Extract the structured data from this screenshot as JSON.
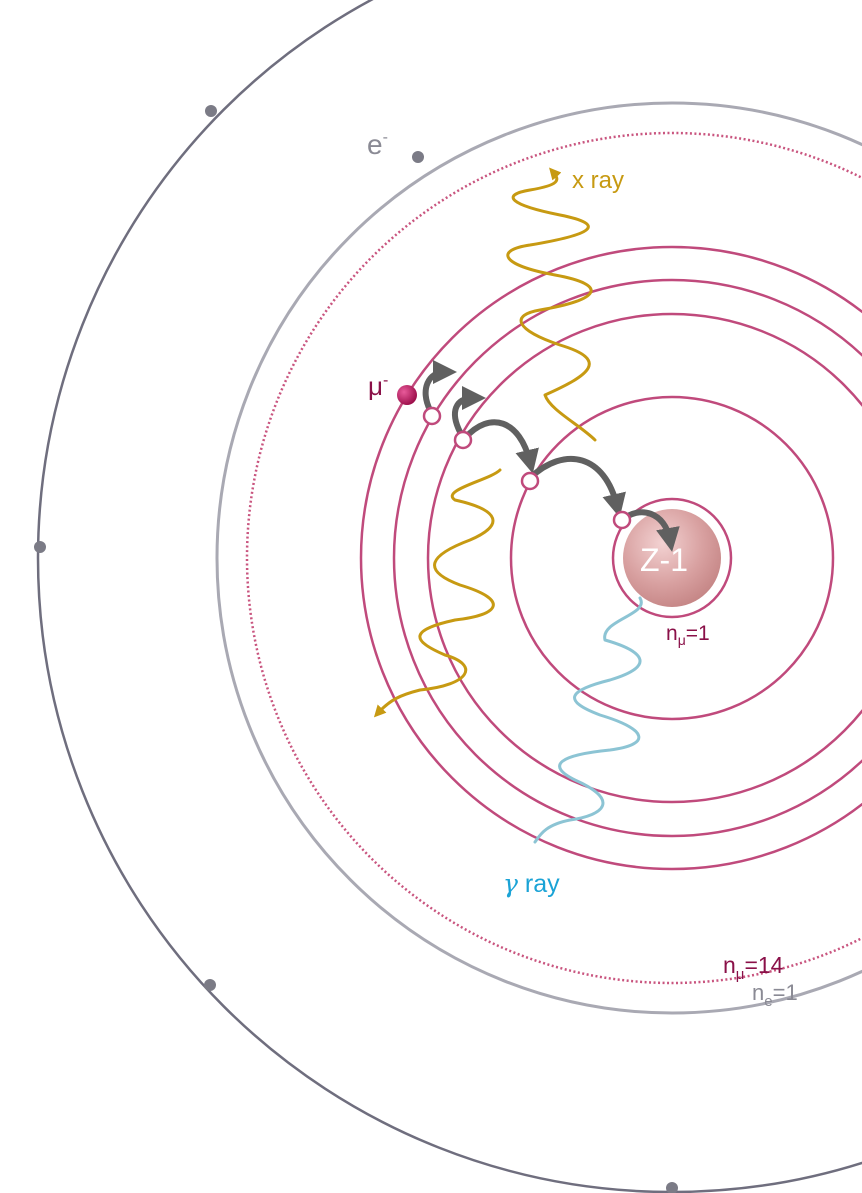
{
  "labels": {
    "electron": "e",
    "electron_sup": "-",
    "muon": "μ",
    "muon_sup": "-",
    "nucleus": "Z-1",
    "xray": "x ray",
    "gamma_symbol": "γ",
    "gamma_text": " ray",
    "n_mu_1_base": "n",
    "n_mu_1_sub": "μ",
    "n_mu_1_val": "=1",
    "n_mu_14_base": "n",
    "n_mu_14_sub": "μ",
    "n_mu_14_val": "=14",
    "n_e_1_base": "n",
    "n_e_1_sub": "e",
    "n_e_1_val": "=1"
  },
  "colors": {
    "outer_orbit": "#6f6e7e",
    "electron_orbit": "#a9a9b3",
    "muon_orbit": "#c04a7c",
    "muon_dotted_orbit": "#c9557f",
    "xray": "#c79a12",
    "gamma": "#8cc4d4",
    "gamma_label": "#1aa3d6",
    "transition_arrow": "#606060",
    "nucleus": "#d49a9a",
    "muon": "#b5145a",
    "electron_dot": "#7b7b86",
    "label_muon": "#8a1048",
    "label_gray": "#8a8a94"
  }
}
